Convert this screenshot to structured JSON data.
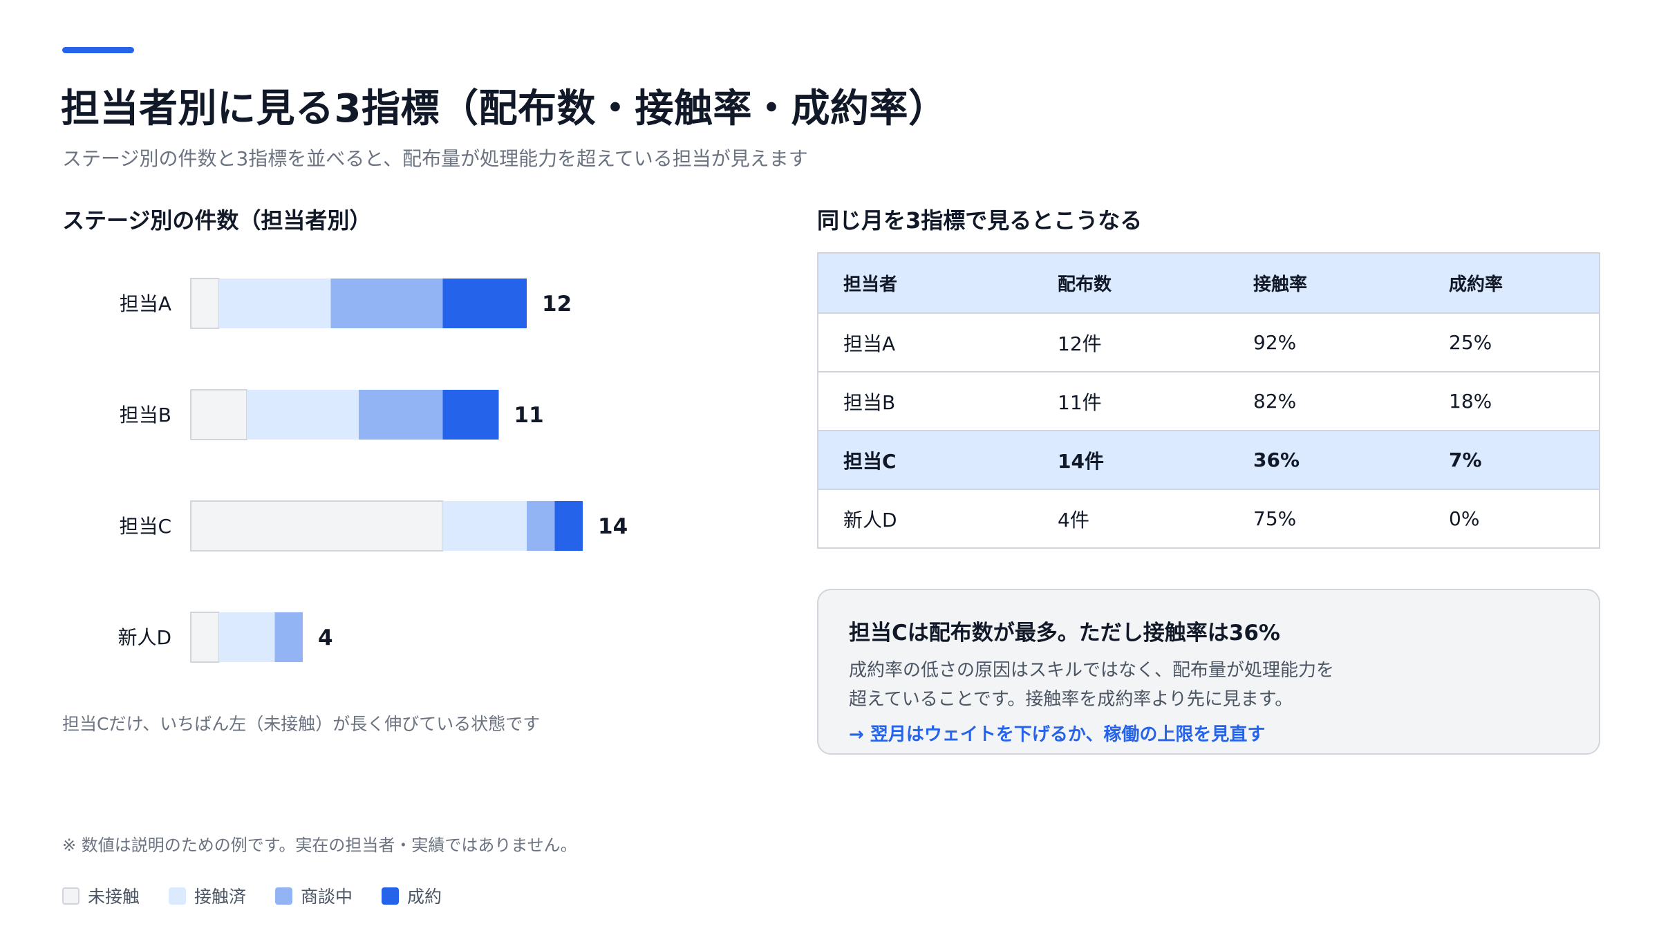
{
  "header": {
    "title": "担当者別に見る3指標（配布数・接触率・成約率）",
    "subtitle": "ステージ別の件数と3指標を並べると、配布量が処理能力を超えている担当が見えます"
  },
  "left_section": {
    "title": "ステージ別の件数（担当者別）",
    "caption": "担当Cだけ、いちばん左（未接触）が長く伸びている状態です"
  },
  "chart_data": {
    "type": "bar",
    "orientation": "horizontal",
    "stacked": true,
    "title": "ステージ別の件数（担当者別）",
    "categories": [
      "担当A",
      "担当B",
      "担当C",
      "新人D"
    ],
    "series": [
      {
        "name": "未接触",
        "values": [
          1,
          2,
          9,
          1
        ],
        "color": "#f3f4f6"
      },
      {
        "name": "接触済",
        "values": [
          4,
          4,
          3,
          2
        ],
        "color": "#dbeafe"
      },
      {
        "name": "商談中",
        "values": [
          4,
          3,
          1,
          1
        ],
        "color": "#93b4f4"
      },
      {
        "name": "成約",
        "values": [
          3,
          2,
          1,
          0
        ],
        "color": "#2563eb"
      }
    ],
    "totals": [
      12,
      11,
      14,
      4
    ],
    "xlim": [
      0,
      14
    ],
    "grid": false,
    "legend": "bottom-left"
  },
  "right_section": {
    "title": "同じ月を3指標で見るとこうなる"
  },
  "table": {
    "headers": [
      "担当者",
      "配布数",
      "接触率",
      "成約率"
    ],
    "rows": [
      [
        "担当A",
        "12件",
        "92%",
        "25%"
      ],
      [
        "担当B",
        "11件",
        "82%",
        "18%"
      ],
      [
        "担当C",
        "14件",
        "36%",
        "7%"
      ],
      [
        "新人D",
        "4件",
        "75%",
        "0%"
      ]
    ],
    "highlight_row": 2,
    "highlight_color": "#dbeafe"
  },
  "callout": {
    "title": "担当Cは配布数が最多。ただし接触率は36%",
    "body_line1": "成約率の低さの原因はスキルではなく、配布量が処理能力を",
    "body_line2": "超えていることです。接触率を成約率より先に見ます。",
    "link": "→ 翌月はウェイトを下げるか、稼働の上限を見直す"
  },
  "footnote": "※ 数値は説明のための例です。実在の担当者・実績ではありません。",
  "legend": [
    {
      "label": "未接触",
      "color": "#f3f4f6"
    },
    {
      "label": "接触済",
      "color": "#dbeafe"
    },
    {
      "label": "商談中",
      "color": "#93b4f4"
    },
    {
      "label": "成約",
      "color": "#2563eb"
    }
  ],
  "colors": {
    "accent": "#2563eb",
    "text": "#111827",
    "muted": "#6b7280",
    "border": "#d1d5db"
  }
}
